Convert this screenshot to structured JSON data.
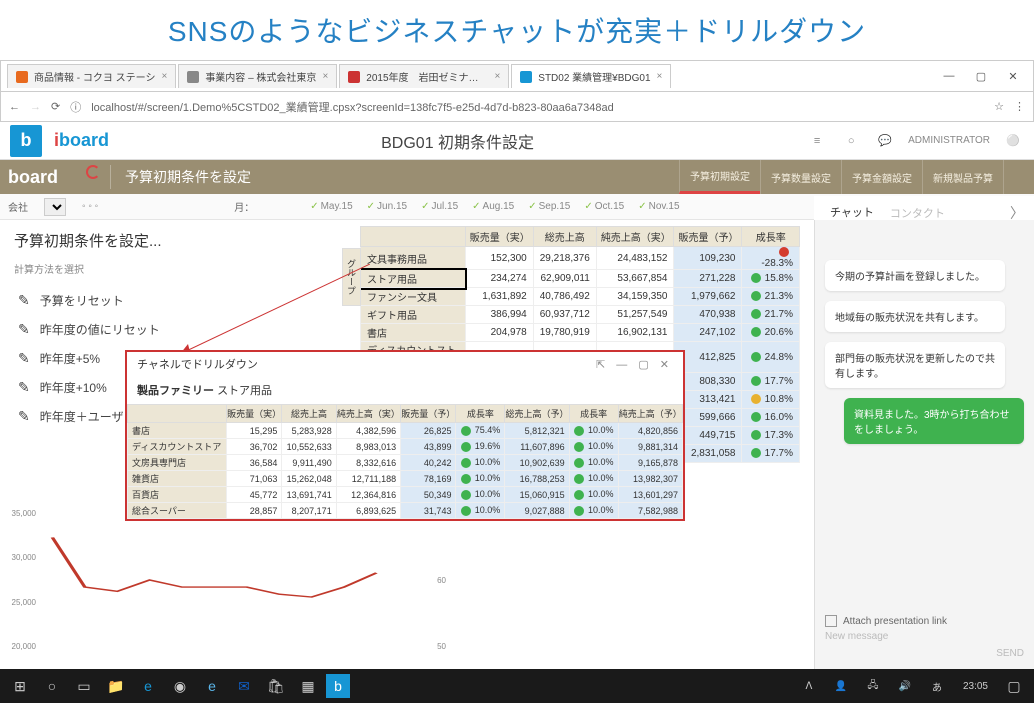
{
  "banner": "SNSのようなビジネスチャットが充実＋ドリルダウン",
  "browser": {
    "tabs": [
      {
        "label": "商品情報 - コクヨ ステーシ",
        "favicon": "#e86a1f"
      },
      {
        "label": "事業内容 – 株式会社東京",
        "favicon": "#888"
      },
      {
        "label": "2015年度　岩田ゼミナール",
        "favicon": "#c33"
      },
      {
        "label": "STD02 業績管理¥BDG01",
        "favicon": "#1796d4",
        "active": true
      }
    ],
    "url": "localhost/#/screen/1.Demo%5CSTD02_業績管理.cpsx?screenId=138fc7f5-e25d-4d7d-b823-80aa6a7348ad"
  },
  "app": {
    "title": "BDG01 初期条件設定",
    "user": "ADMINISTRATOR"
  },
  "toolbar": {
    "title": "予算初期条件を設定",
    "tabs": [
      "予算初期設定",
      "予算数量設定",
      "予算金額設定",
      "新規製品予算",
      ""
    ]
  },
  "filters": {
    "company_label": "会社",
    "month_label": "月：",
    "months": [
      "May.15",
      "Jun.15",
      "Jul.15",
      "Aug.15",
      "Sep.15",
      "Oct.15",
      "Nov.15"
    ]
  },
  "left": {
    "heading": "予算初期条件を設定...",
    "sub": "計算方法を選択",
    "items": [
      "予算をリセット",
      "昨年度の値にリセット",
      "昨年度+5%",
      "昨年度+10%",
      "昨年度＋ユーザ"
    ]
  },
  "table": {
    "headers": [
      "",
      "販売量（実）",
      "総売上高",
      "純売上高（実）",
      "販売量（予）",
      "成長率"
    ],
    "group": "グループ",
    "rows": [
      {
        "n": "文具事務用品",
        "a": "152,300",
        "b": "29,218,376",
        "c": "24,483,152",
        "p": "109,230",
        "r": "-28.3%",
        "d": "r"
      },
      {
        "n": "ストア用品",
        "a": "234,274",
        "b": "62,909,011",
        "c": "53,667,854",
        "p": "271,228",
        "r": "15.8%",
        "d": "g",
        "hl": true
      },
      {
        "n": "ファンシー文具",
        "a": "1,631,892",
        "b": "40,786,492",
        "c": "34,159,350",
        "p": "1,979,662",
        "r": "21.3%",
        "d": "g"
      },
      {
        "n": "ギフト用品",
        "a": "386,994",
        "b": "60,937,712",
        "c": "51,257,549",
        "p": "470,938",
        "r": "21.7%",
        "d": "g"
      },
      {
        "n": "書店",
        "a": "204,978",
        "b": "19,780,919",
        "c": "16,902,131",
        "p": "247,102",
        "r": "20.6%",
        "d": "g"
      },
      {
        "n": "ディスカウントストア",
        "a": "330,789",
        "b": "31,389,324",
        "c": "26,654,077",
        "p": "412,825",
        "r": "24.8%",
        "d": "g"
      },
      {
        "n": "",
        "a": "",
        "b": "",
        "c": "",
        "p": "808,330",
        "r": "17.7%",
        "d": "g"
      },
      {
        "n": "",
        "a": "",
        "b": "",
        "c": "",
        "p": "313,421",
        "r": "10.8%",
        "d": "y"
      },
      {
        "n": "",
        "a": "",
        "b": "",
        "c": "",
        "p": "599,666",
        "r": "16.0%",
        "d": "g"
      },
      {
        "n": "",
        "a": "",
        "b": "",
        "c": "",
        "p": "449,715",
        "r": "17.3%",
        "d": "g"
      },
      {
        "n": "",
        "a": "",
        "b": "",
        "c": "",
        "p": "2,831,058",
        "r": "17.7%",
        "d": "g"
      }
    ]
  },
  "popup": {
    "title": "チャネルでドリルダウン",
    "family_label": "製品ファミリー",
    "family_value": "ストア用品",
    "headers": [
      "",
      "販売量（実）",
      "総売上高",
      "純売上高（実）",
      "販売量（予）",
      "成長率",
      "総売上高（予）",
      "成長率",
      "純売上高（予）"
    ],
    "rows": [
      {
        "n": "書店",
        "c": [
          "15,295",
          "5,283,928",
          "4,382,596",
          "26,825",
          "75.4%",
          "5,812,321",
          "10.0%",
          "4,820,856"
        ],
        "d": [
          "g",
          "g",
          "r"
        ]
      },
      {
        "n": "ディスカウントストア",
        "c": [
          "36,702",
          "10,552,633",
          "8,983,013",
          "43,899",
          "19.6%",
          "11,607,896",
          "10.0%",
          "9,881,314"
        ],
        "d": [
          "g",
          "g",
          "g"
        ]
      },
      {
        "n": "文房具専門店",
        "c": [
          "36,584",
          "9,911,490",
          "8,332,616",
          "40,242",
          "10.0%",
          "10,902,639",
          "10.0%",
          "9,165,878"
        ],
        "d": [
          "g",
          "g",
          "y"
        ]
      },
      {
        "n": "雑貨店",
        "c": [
          "71,063",
          "15,262,048",
          "12,711,188",
          "78,169",
          "10.0%",
          "16,788,253",
          "10.0%",
          "13,982,307"
        ],
        "d": [
          "g",
          "g",
          "g"
        ]
      },
      {
        "n": "百貨店",
        "c": [
          "45,772",
          "13,691,741",
          "12,364,816",
          "50,349",
          "10.0%",
          "15,060,915",
          "10.0%",
          "13,601,297"
        ],
        "d": [
          "g",
          "g",
          "g"
        ]
      },
      {
        "n": "総合スーパー",
        "c": [
          "28,857",
          "8,207,171",
          "6,893,625",
          "31,743",
          "10.0%",
          "9,027,888",
          "10.0%",
          "7,582,988"
        ],
        "d": [
          "g",
          "g",
          "r"
        ]
      }
    ]
  },
  "chat": {
    "tab1": "チャット",
    "tab2": "コンタクト",
    "msgs": [
      {
        "t": "今期の予算計画を登録しました。"
      },
      {
        "t": "地域毎の販売状況を共有します。"
      },
      {
        "t": "部門毎の販売状況を更新したので共有します。"
      },
      {
        "t": "資料見ました。3時から打ち合わせをしましょう。",
        "me": true
      }
    ],
    "attach_label": "Attach presentation link",
    "new_msg": "New message",
    "send": "SEND"
  },
  "charts": {
    "y1": [
      "35,000",
      "30,000",
      "25,000",
      "20,000"
    ],
    "y2": [
      "70",
      "60",
      "50"
    ],
    "bars1": [
      [
        72,
        80
      ],
      [
        70,
        78
      ],
      [
        42,
        45
      ],
      [
        45,
        52
      ],
      [
        45,
        50
      ],
      [
        45,
        50
      ],
      [
        45,
        50
      ],
      [
        42,
        48
      ],
      [
        40,
        45
      ],
      [
        42,
        50
      ],
      [
        50,
        55
      ]
    ],
    "bars2": [
      [
        65,
        68
      ],
      [
        62,
        65
      ],
      [
        48,
        52
      ],
      [
        60,
        65
      ],
      [
        55,
        58
      ],
      [
        52,
        55
      ],
      [
        50,
        55
      ],
      [
        60,
        65
      ],
      [
        50,
        55
      ],
      [
        58,
        62
      ],
      [
        62,
        68
      ]
    ]
  },
  "taskbar": {
    "time": "23:05"
  }
}
